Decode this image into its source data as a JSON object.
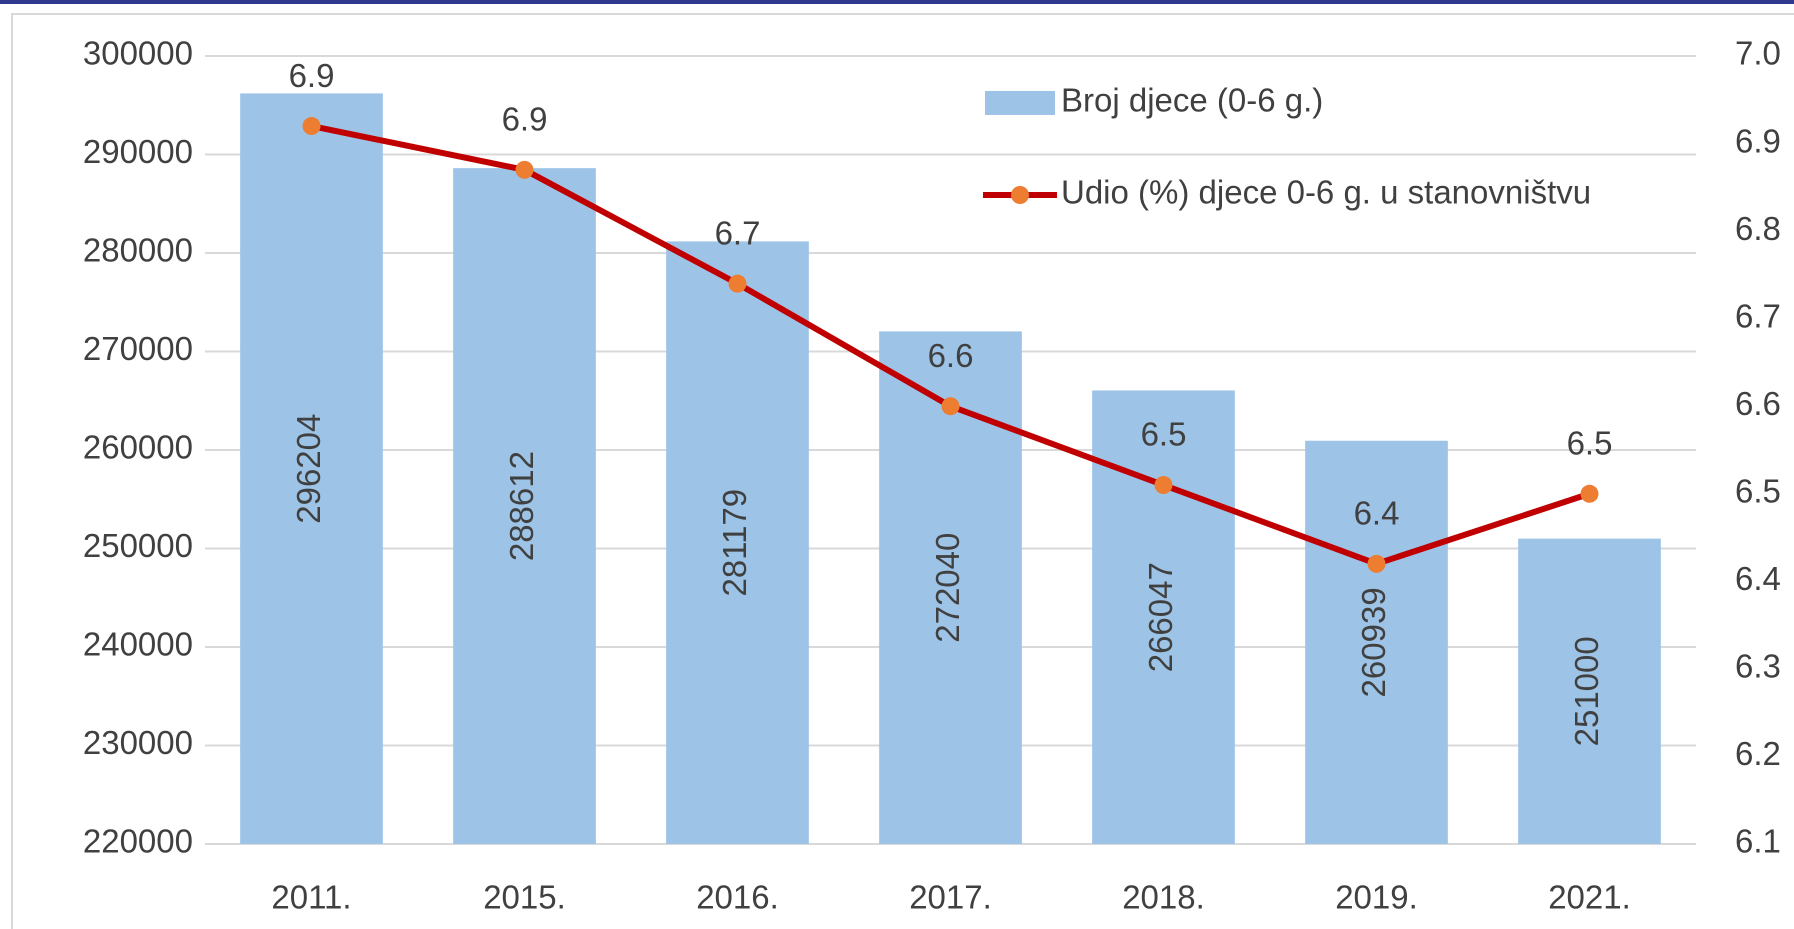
{
  "chart_data": {
    "type": "bar_line",
    "categories": [
      "2011.",
      "2015.",
      "2016.",
      "2017.",
      "2018.",
      "2019.",
      "2021."
    ],
    "series": [
      {
        "name": "Broj djece (0-6 g.)",
        "type": "bar",
        "color": "#9dc3e6",
        "marker_color": null,
        "axis": "y",
        "values": [
          296204,
          288612,
          281179,
          272040,
          266047,
          260939,
          251000
        ]
      },
      {
        "name": "Udio (%) djece 0-6 g. u stanovništvu",
        "type": "line",
        "color": "#c00000",
        "marker_color": "#ed7d31",
        "axis": "y2",
        "values": [
          6.92,
          6.87,
          6.74,
          6.6,
          6.51,
          6.42,
          6.5
        ],
        "value_labels": [
          "6.9",
          "6.9",
          "6.7",
          "6.6",
          "6.5",
          "6.4",
          "6.5"
        ]
      }
    ],
    "ylim": [
      220000,
      300000
    ],
    "yticks": [
      220000,
      230000,
      240000,
      250000,
      260000,
      270000,
      280000,
      290000,
      300000
    ],
    "y2lim": [
      6.1,
      7.0
    ],
    "y2ticks": [
      6.1,
      6.2,
      6.3,
      6.4,
      6.5,
      6.6,
      6.7,
      6.8,
      6.9,
      {
        "value": 7.0,
        "label": "7.0"
      }
    ],
    "grid": true,
    "legend": "upper right"
  }
}
